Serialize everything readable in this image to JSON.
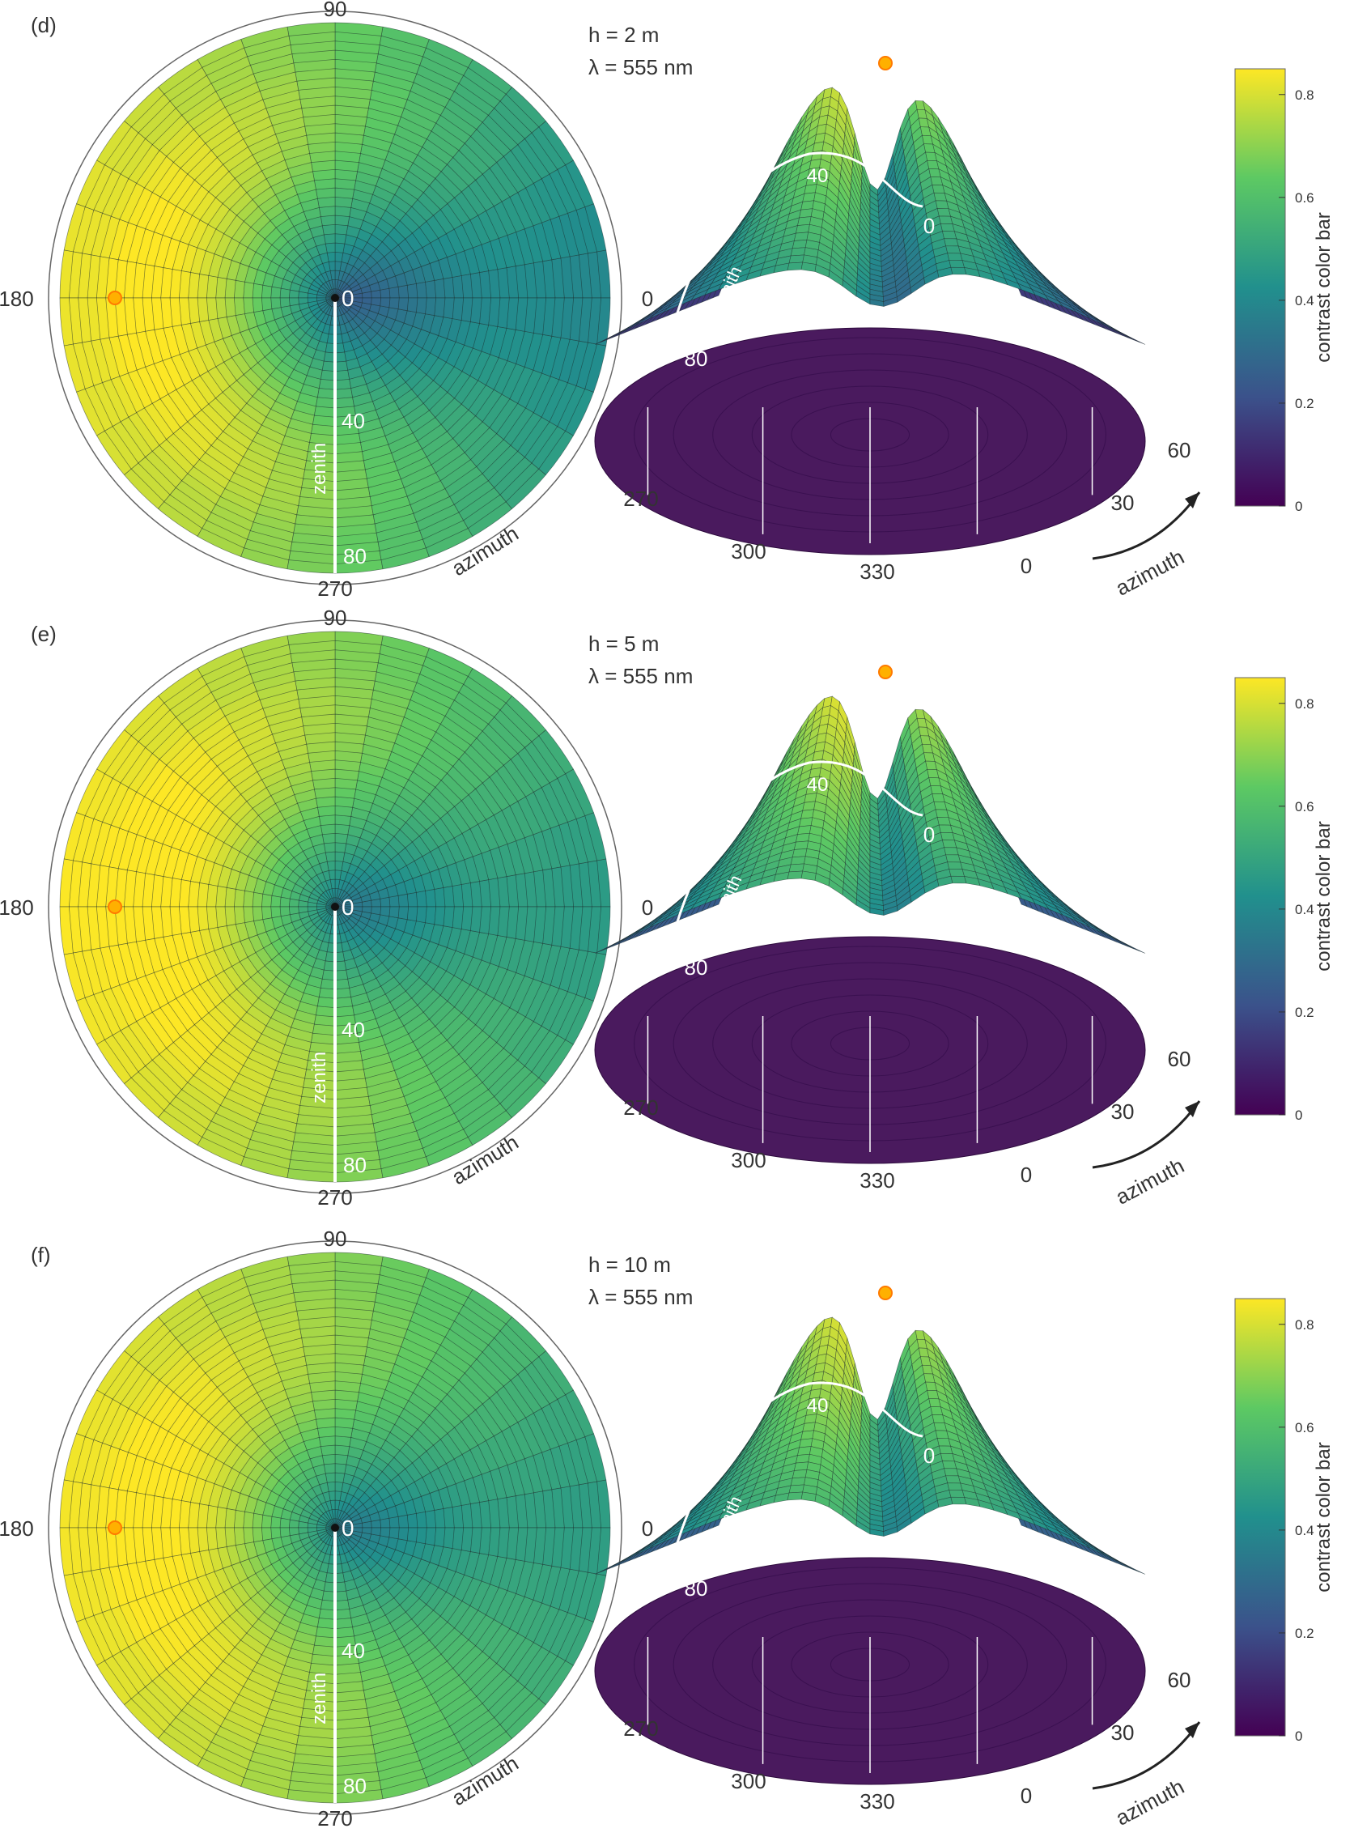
{
  "colorbar": {
    "label": "contrast color bar",
    "ticks": [
      "0",
      "0.2",
      "0.4",
      "0.6",
      "0.8"
    ],
    "tick_values": [
      0,
      0.2,
      0.4,
      0.6,
      0.8
    ],
    "range": [
      0,
      0.85
    ],
    "colormap": [
      "#440154",
      "#3b528b",
      "#21908d",
      "#5dc963",
      "#fde725"
    ]
  },
  "polar": {
    "angle_labels": {
      "top": "90",
      "left": "180",
      "right": "0",
      "bottom": "270"
    },
    "center_label": "0",
    "zenith_tick_1": "40",
    "zenith_tick_2": "80",
    "zenith_label": "zenith",
    "azimuth_label": "azimuth"
  },
  "surface": {
    "zenith_label": "zenith",
    "ridge_label_40": "40",
    "ridge_label_0": "0",
    "ridge_label_80": "80",
    "base_labels": [
      "270",
      "300",
      "330",
      "0",
      "30",
      "60"
    ],
    "azimuth_label": "azimuth"
  },
  "panels": [
    {
      "id": "(d)",
      "height": "h = 2 m",
      "wavelength": "λ = 555 nm",
      "sun_azimuth_deg": 180
    },
    {
      "id": "(e)",
      "height": "h = 5 m",
      "wavelength": "λ = 555 nm",
      "sun_azimuth_deg": 180
    },
    {
      "id": "(f)",
      "height": "h = 10 m",
      "wavelength": "λ = 555 nm",
      "sun_azimuth_deg": 180
    }
  ],
  "colors": {
    "sun": "#ffb000",
    "sun_stroke": "#ff7a00",
    "annotation": "#ffffff"
  },
  "chart_data": [
    {
      "type": "heatmap",
      "panel": "(d)",
      "projection": "polar",
      "xlabel": "azimuth",
      "ylabel": "zenith",
      "azimuth_ticks": [
        0,
        90,
        180,
        270
      ],
      "zenith_ticks": [
        0,
        40,
        80
      ],
      "contrast_max": 0.83,
      "contrast_min": 0.12,
      "min_azimuth_deg": 0,
      "colorbar_range": [
        0,
        0.85
      ]
    },
    {
      "type": "heatmap",
      "panel": "(e)",
      "projection": "polar",
      "xlabel": "azimuth",
      "ylabel": "zenith",
      "azimuth_ticks": [
        0,
        90,
        180,
        270
      ],
      "zenith_ticks": [
        0,
        40,
        80
      ],
      "contrast_max": 0.85,
      "contrast_min": 0.22,
      "min_azimuth_deg": 0,
      "colorbar_range": [
        0,
        0.85
      ]
    },
    {
      "type": "heatmap",
      "panel": "(f)",
      "projection": "polar",
      "xlabel": "azimuth",
      "ylabel": "zenith",
      "azimuth_ticks": [
        0,
        90,
        180,
        270
      ],
      "zenith_ticks": [
        0,
        40,
        80
      ],
      "contrast_max": 0.84,
      "contrast_min": 0.24,
      "min_azimuth_deg": 0,
      "colorbar_range": [
        0,
        0.85
      ]
    }
  ]
}
